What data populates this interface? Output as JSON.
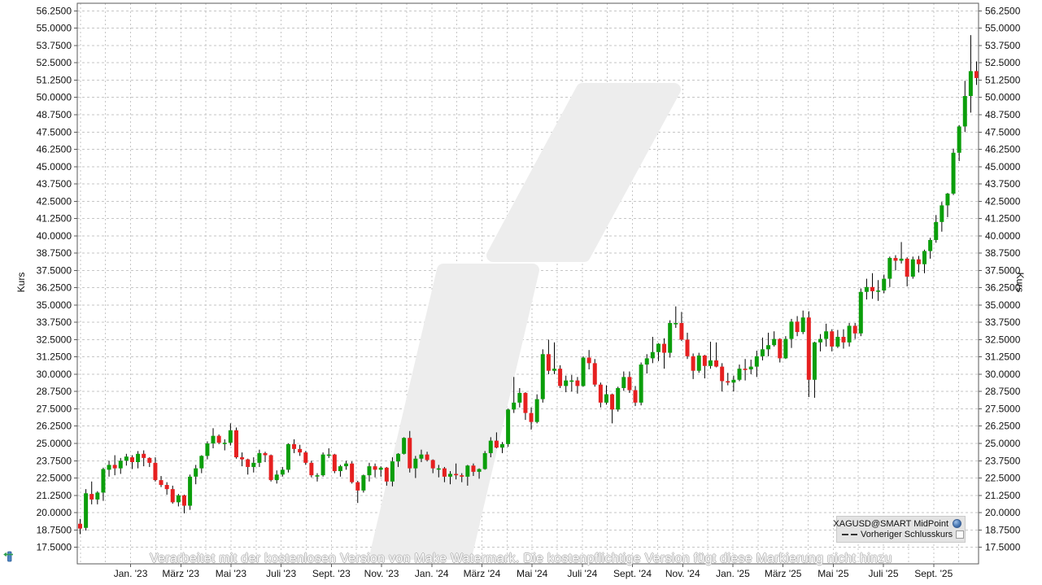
{
  "axes": {
    "y_left_title": "Kurs",
    "y_right_title": "Kurs"
  },
  "legend": {
    "series_label": "XAGUSD@SMART MidPoint",
    "previous_close_label": "Vorheriger Schlusskurs"
  },
  "watermark": {
    "text": "Verarbeitet mit der kostenlosen Version von Make Watermark. Die kostenpflichtige Version fügt diese Markierung nicht hinzu"
  },
  "icons": {
    "legend_instrument": "globe-icon",
    "legend_previous_close": "checkbox",
    "bottom_left": "scroll-to-start-icon"
  },
  "chart_data": {
    "type": "candlestick",
    "title": "",
    "instrument": "XAGUSD@SMART MidPoint",
    "ylabel": "Kurs",
    "ylim": [
      17.5,
      56.25
    ],
    "y_tick_step": 1.25,
    "grid": true,
    "legend_position": "bottom-right",
    "y_tick_labels": [
      "56.2500",
      "55.0000",
      "53.7500",
      "52.5000",
      "51.2500",
      "50.0000",
      "48.7500",
      "47.5000",
      "46.2500",
      "45.0000",
      "43.7500",
      "42.5000",
      "41.2500",
      "40.0000",
      "38.7500",
      "37.5000",
      "36.2500",
      "35.0000",
      "33.7500",
      "32.5000",
      "31.2500",
      "30.0000",
      "28.7500",
      "27.5000",
      "26.2500",
      "25.0000",
      "23.7500",
      "22.5000",
      "21.2500",
      "20.0000",
      "18.7500",
      "17.5000"
    ],
    "x_tick_labels": [
      "Jan. '23",
      "März '23",
      "Mai '23",
      "Juli '23",
      "Sept. '23",
      "Nov. '23",
      "Jan. '24",
      "März '24",
      "Mai '24",
      "Juli '24",
      "Sept. '24",
      "Nov. '24",
      "Jan. '25",
      "März '25",
      "Mai '25",
      "Juli '25",
      "Sept. '25"
    ],
    "colors": {
      "up": "#0b9e0b",
      "down": "#e62020",
      "wick": "#000000",
      "grid": "#c6c6c6",
      "watermark_shape": "#ededed"
    },
    "candles": [
      [
        19.2,
        19.55,
        18.45,
        18.85
      ],
      [
        18.9,
        21.7,
        18.7,
        21.4
      ],
      [
        21.35,
        22.25,
        20.6,
        20.95
      ],
      [
        20.95,
        21.55,
        20.6,
        21.45
      ],
      [
        21.45,
        23.25,
        20.85,
        23.15
      ],
      [
        23.1,
        23.75,
        22.6,
        23.45
      ],
      [
        23.45,
        24.15,
        22.7,
        23.2
      ],
      [
        23.2,
        23.95,
        22.8,
        23.75
      ],
      [
        23.75,
        24.25,
        23.4,
        24.05
      ],
      [
        24.0,
        24.15,
        23.15,
        23.65
      ],
      [
        23.65,
        24.45,
        23.2,
        24.25
      ],
      [
        24.25,
        24.5,
        23.35,
        23.95
      ],
      [
        23.95,
        24.0,
        23.3,
        23.6
      ],
      [
        23.6,
        24.0,
        22.25,
        22.35
      ],
      [
        22.35,
        22.65,
        21.85,
        22.0
      ],
      [
        22.0,
        22.2,
        21.3,
        21.7
      ],
      [
        21.7,
        21.95,
        20.65,
        20.75
      ],
      [
        20.75,
        21.35,
        20.45,
        21.25
      ],
      [
        21.25,
        21.3,
        19.95,
        20.5
      ],
      [
        20.5,
        22.75,
        20.2,
        22.6
      ],
      [
        22.6,
        23.45,
        22.05,
        23.2
      ],
      [
        23.2,
        24.15,
        22.85,
        24.1
      ],
      [
        24.1,
        25.15,
        23.85,
        25.0
      ],
      [
        25.0,
        26.1,
        24.65,
        25.55
      ],
      [
        25.55,
        25.65,
        24.95,
        25.05
      ],
      [
        25.05,
        25.3,
        24.5,
        25.05
      ],
      [
        25.05,
        26.45,
        24.85,
        25.95
      ],
      [
        25.95,
        26.15,
        23.9,
        24.0
      ],
      [
        24.0,
        24.35,
        23.35,
        23.85
      ],
      [
        23.85,
        23.9,
        22.75,
        23.3
      ],
      [
        23.3,
        24.0,
        22.9,
        23.6
      ],
      [
        23.6,
        24.55,
        23.3,
        24.3
      ],
      [
        24.3,
        24.4,
        23.65,
        24.15
      ],
      [
        24.15,
        24.2,
        22.25,
        22.35
      ],
      [
        22.35,
        23.05,
        22.1,
        22.75
      ],
      [
        22.75,
        23.3,
        22.6,
        23.1
      ],
      [
        23.1,
        25.0,
        22.9,
        24.95
      ],
      [
        24.95,
        25.3,
        24.3,
        24.6
      ],
      [
        24.6,
        24.9,
        24.1,
        24.35
      ],
      [
        24.35,
        24.45,
        23.45,
        23.6
      ],
      [
        23.6,
        23.75,
        22.55,
        22.7
      ],
      [
        22.7,
        22.85,
        22.25,
        22.7
      ],
      [
        22.7,
        24.35,
        22.6,
        24.2
      ],
      [
        24.2,
        24.65,
        23.95,
        24.2
      ],
      [
        24.2,
        24.25,
        22.85,
        23.0
      ],
      [
        23.0,
        23.45,
        22.6,
        23.35
      ],
      [
        23.35,
        23.75,
        23.1,
        23.55
      ],
      [
        23.55,
        23.7,
        22.1,
        22.2
      ],
      [
        22.2,
        22.3,
        20.7,
        21.6
      ],
      [
        21.6,
        22.75,
        21.45,
        22.7
      ],
      [
        22.7,
        23.6,
        22.25,
        23.35
      ],
      [
        23.35,
        23.55,
        22.55,
        23.1
      ],
      [
        23.1,
        23.35,
        22.6,
        23.25
      ],
      [
        23.25,
        23.3,
        21.95,
        22.25
      ],
      [
        22.25,
        24.0,
        21.9,
        23.7
      ],
      [
        23.7,
        24.3,
        23.3,
        24.25
      ],
      [
        24.25,
        25.45,
        24.2,
        25.4
      ],
      [
        25.4,
        25.9,
        22.9,
        23.2
      ],
      [
        23.2,
        24.1,
        22.5,
        23.9
      ],
      [
        23.9,
        24.55,
        23.65,
        24.2
      ],
      [
        24.2,
        24.4,
        23.7,
        23.8
      ],
      [
        23.8,
        23.85,
        22.85,
        23.2
      ],
      [
        23.2,
        23.45,
        22.55,
        23.2
      ],
      [
        23.2,
        23.3,
        22.2,
        22.6
      ],
      [
        22.6,
        23.0,
        22.05,
        22.8
      ],
      [
        22.8,
        23.55,
        22.4,
        22.7
      ],
      [
        22.7,
        22.85,
        22.2,
        22.6
      ],
      [
        22.6,
        23.45,
        21.95,
        23.4
      ],
      [
        23.4,
        23.55,
        22.65,
        22.95
      ],
      [
        22.95,
        23.2,
        22.45,
        23.15
      ],
      [
        23.15,
        24.45,
        23.1,
        24.3
      ],
      [
        24.3,
        25.45,
        24.0,
        25.2
      ],
      [
        25.2,
        25.8,
        24.65,
        24.7
      ],
      [
        24.7,
        25.1,
        24.3,
        24.95
      ],
      [
        24.95,
        27.5,
        24.75,
        27.45
      ],
      [
        27.45,
        29.8,
        27.2,
        27.95
      ],
      [
        27.95,
        29.0,
        27.6,
        28.65
      ],
      [
        28.65,
        28.7,
        26.7,
        27.2
      ],
      [
        27.2,
        27.6,
        26.0,
        26.55
      ],
      [
        26.55,
        28.55,
        26.45,
        28.2
      ],
      [
        28.2,
        31.8,
        27.95,
        31.45
      ],
      [
        31.45,
        32.5,
        30.0,
        30.25
      ],
      [
        30.25,
        32.3,
        30.0,
        30.4
      ],
      [
        30.4,
        30.65,
        29.0,
        29.15
      ],
      [
        29.15,
        29.9,
        28.7,
        29.55
      ],
      [
        29.55,
        29.95,
        28.75,
        29.55
      ],
      [
        29.55,
        29.8,
        28.6,
        29.15
      ],
      [
        29.15,
        31.3,
        29.1,
        31.2
      ],
      [
        31.2,
        31.75,
        30.35,
        30.8
      ],
      [
        30.8,
        31.1,
        29.1,
        29.25
      ],
      [
        29.25,
        29.4,
        27.6,
        27.95
      ],
      [
        27.95,
        29.2,
        27.8,
        28.55
      ],
      [
        28.55,
        28.6,
        26.45,
        27.45
      ],
      [
        27.45,
        29.1,
        27.3,
        29.0
      ],
      [
        29.0,
        30.2,
        28.8,
        29.8
      ],
      [
        29.8,
        30.2,
        28.65,
        28.85
      ],
      [
        28.85,
        29.15,
        27.7,
        27.95
      ],
      [
        27.95,
        30.85,
        27.75,
        30.7
      ],
      [
        30.7,
        31.45,
        30.05,
        31.15
      ],
      [
        31.15,
        32.7,
        30.8,
        31.6
      ],
      [
        31.6,
        32.25,
        30.95,
        32.2
      ],
      [
        32.2,
        32.6,
        30.4,
        31.55
      ],
      [
        31.55,
        33.9,
        31.2,
        33.7
      ],
      [
        33.7,
        34.9,
        33.35,
        33.7
      ],
      [
        33.7,
        34.5,
        32.4,
        32.5
      ],
      [
        32.5,
        33.0,
        31.1,
        31.3
      ],
      [
        31.3,
        31.5,
        29.65,
        30.25
      ],
      [
        30.25,
        31.55,
        30.1,
        31.35
      ],
      [
        31.35,
        31.4,
        29.7,
        30.6
      ],
      [
        30.6,
        32.35,
        30.4,
        31.0
      ],
      [
        31.0,
        32.3,
        30.5,
        30.55
      ],
      [
        30.55,
        30.8,
        28.75,
        29.5
      ],
      [
        29.5,
        30.1,
        29.2,
        29.4
      ],
      [
        29.4,
        29.9,
        28.75,
        29.6
      ],
      [
        29.6,
        30.7,
        29.5,
        30.4
      ],
      [
        30.4,
        31.1,
        29.55,
        30.35
      ],
      [
        30.35,
        31.05,
        30.0,
        30.55
      ],
      [
        30.55,
        31.7,
        29.8,
        31.3
      ],
      [
        31.3,
        32.65,
        31.0,
        31.8
      ],
      [
        31.8,
        33.0,
        31.3,
        32.1
      ],
      [
        32.1,
        33.1,
        32.0,
        32.55
      ],
      [
        32.55,
        32.6,
        30.85,
        31.15
      ],
      [
        31.15,
        32.75,
        31.1,
        32.55
      ],
      [
        32.55,
        34.0,
        31.9,
        33.8
      ],
      [
        33.8,
        34.2,
        32.75,
        33.05
      ],
      [
        33.05,
        34.6,
        32.9,
        34.1
      ],
      [
        34.1,
        34.55,
        28.35,
        29.6
      ],
      [
        29.6,
        32.35,
        28.3,
        32.3
      ],
      [
        32.3,
        32.9,
        31.65,
        32.55
      ],
      [
        32.55,
        33.65,
        32.0,
        33.1
      ],
      [
        33.1,
        33.25,
        31.65,
        32.0
      ],
      [
        32.0,
        33.2,
        31.9,
        32.7
      ],
      [
        32.7,
        33.25,
        31.85,
        32.3
      ],
      [
        32.3,
        33.7,
        32.0,
        33.5
      ],
      [
        33.5,
        33.7,
        32.55,
        32.95
      ],
      [
        32.95,
        36.2,
        32.75,
        35.95
      ],
      [
        35.95,
        36.9,
        35.4,
        36.3
      ],
      [
        36.3,
        37.3,
        35.45,
        36.0
      ],
      [
        36.0,
        36.8,
        35.3,
        36.05
      ],
      [
        36.05,
        37.2,
        35.85,
        36.9
      ],
      [
        36.9,
        38.5,
        36.3,
        38.4
      ],
      [
        38.4,
        38.6,
        37.5,
        38.2
      ],
      [
        38.2,
        39.55,
        38.0,
        38.35
      ],
      [
        38.35,
        38.45,
        36.35,
        37.05
      ],
      [
        37.05,
        38.5,
        36.9,
        38.3
      ],
      [
        38.3,
        38.55,
        37.35,
        37.95
      ],
      [
        37.95,
        39.0,
        37.3,
        38.9
      ],
      [
        38.9,
        39.85,
        38.35,
        39.7
      ],
      [
        39.7,
        41.5,
        39.5,
        41.0
      ],
      [
        41.0,
        42.45,
        40.3,
        42.2
      ],
      [
        42.2,
        43.1,
        41.35,
        43.05
      ],
      [
        43.05,
        46.3,
        42.95,
        46.0
      ],
      [
        46.0,
        48.0,
        45.4,
        47.9
      ],
      [
        47.9,
        51.2,
        47.5,
        50.1
      ],
      [
        50.1,
        54.5,
        48.9,
        51.9
      ],
      [
        51.9,
        52.6,
        50.9,
        51.4
      ]
    ]
  }
}
